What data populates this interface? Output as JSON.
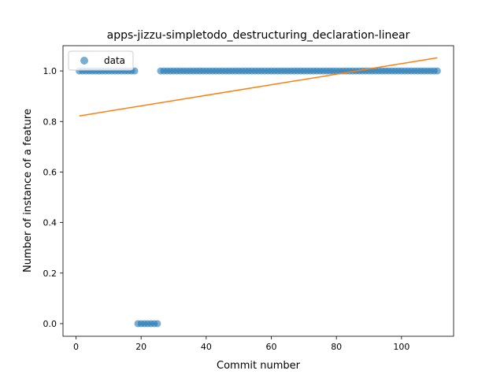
{
  "chart_data": {
    "type": "scatter",
    "title": "apps-jizzu-simpletodo_destructuring_declaration-linear",
    "xlabel": "Commit number",
    "ylabel": "Number of instance of a feature",
    "xlim": [
      -4,
      116
    ],
    "ylim": [
      -0.05,
      1.1
    ],
    "xticks": [
      0,
      20,
      40,
      60,
      80,
      100
    ],
    "yticks": [
      0.0,
      0.2,
      0.4,
      0.6,
      0.8,
      1.0
    ],
    "ytick_labels": [
      "0.0",
      "0.2",
      "0.4",
      "0.6",
      "0.8",
      "1.0"
    ],
    "legend": {
      "placement": "upper-left",
      "entries": [
        "data"
      ]
    },
    "series": [
      {
        "name": "data",
        "kind": "scatter",
        "color": "#1f77b4",
        "x": [
          1,
          2,
          3,
          4,
          5,
          6,
          7,
          8,
          9,
          10,
          11,
          12,
          13,
          14,
          15,
          16,
          17,
          18,
          19,
          20,
          21,
          22,
          23,
          24,
          25,
          26,
          27,
          28,
          29,
          30,
          31,
          32,
          33,
          34,
          35,
          36,
          37,
          38,
          39,
          40,
          41,
          42,
          43,
          44,
          45,
          46,
          47,
          48,
          49,
          50,
          51,
          52,
          53,
          54,
          55,
          56,
          57,
          58,
          59,
          60,
          61,
          62,
          63,
          64,
          65,
          66,
          67,
          68,
          69,
          70,
          71,
          72,
          73,
          74,
          75,
          76,
          77,
          78,
          79,
          80,
          81,
          82,
          83,
          84,
          85,
          86,
          87,
          88,
          89,
          90,
          91,
          92,
          93,
          94,
          95,
          96,
          97,
          98,
          99,
          100,
          101,
          102,
          103,
          104,
          105,
          106,
          107,
          108,
          109,
          110,
          111
        ],
        "y": [
          1,
          1,
          1,
          1,
          1,
          1,
          1,
          1,
          1,
          1,
          1,
          1,
          1,
          1,
          1,
          1,
          1,
          1,
          0,
          0,
          0,
          0,
          0,
          0,
          0,
          1,
          1,
          1,
          1,
          1,
          1,
          1,
          1,
          1,
          1,
          1,
          1,
          1,
          1,
          1,
          1,
          1,
          1,
          1,
          1,
          1,
          1,
          1,
          1,
          1,
          1,
          1,
          1,
          1,
          1,
          1,
          1,
          1,
          1,
          1,
          1,
          1,
          1,
          1,
          1,
          1,
          1,
          1,
          1,
          1,
          1,
          1,
          1,
          1,
          1,
          1,
          1,
          1,
          1,
          1,
          1,
          1,
          1,
          1,
          1,
          1,
          1,
          1,
          1,
          1,
          1,
          1,
          1,
          1,
          1,
          1,
          1,
          1,
          1,
          1,
          1,
          1,
          1,
          1,
          1,
          1,
          1,
          1,
          1,
          1,
          1
        ]
      },
      {
        "kind": "line",
        "color": "#ff7f0e",
        "x": [
          1,
          111
        ],
        "y": [
          0.822,
          1.052
        ]
      }
    ]
  }
}
